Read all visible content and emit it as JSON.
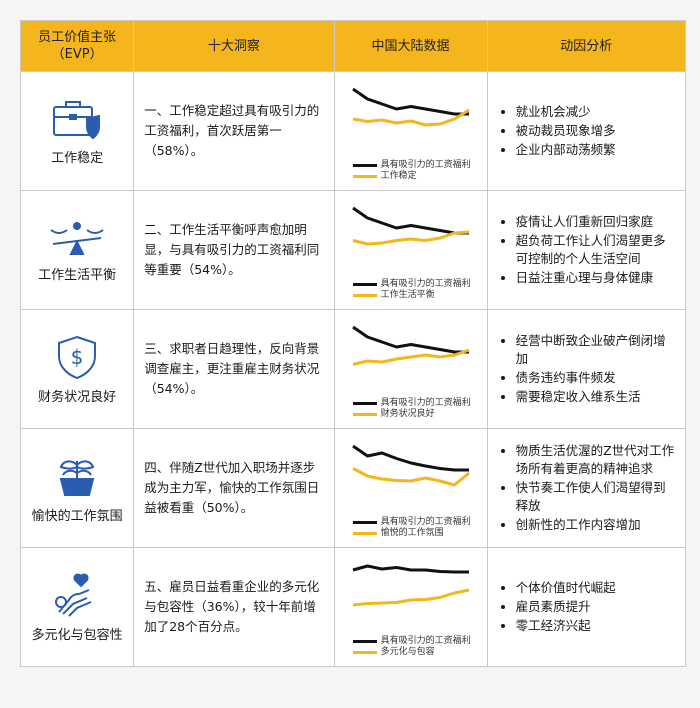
{
  "header": {
    "evp": "员工价值主张\n（EVP）",
    "insights": "十大洞察",
    "china_data": "中国大陆数据",
    "drivers": "动因分析"
  },
  "colors": {
    "accent": "#f5b51c",
    "icon_blue": "#2a5db0",
    "benchmark_line": "#111111"
  },
  "rows": [
    {
      "evp": "工作稳定",
      "icon": "briefcase-shield-icon",
      "insight": "一、工作稳定超过具有吸引力的工资福利，首次跃居第一（58%）。",
      "legend": [
        "具有吸引力的工资福利",
        "工作稳定"
      ],
      "series_black": [
        9,
        7,
        6,
        5,
        5.5,
        5,
        4.5,
        4,
        4
      ],
      "series_orange": [
        3,
        2.5,
        2.8,
        2.2,
        2.6,
        1.8,
        2,
        3,
        4.8
      ],
      "drivers": [
        "就业机会减少",
        "被动裁员现象增多",
        "企业内部动荡频繁"
      ]
    },
    {
      "evp": "工作生活平衡",
      "icon": "balance-scale-icon",
      "insight": "二、工作生活平衡呼声愈加明显，与具有吸引力的工资福利同等重要（54%）。",
      "legend": [
        "具有吸引力的工资福利",
        "工作生活平衡"
      ],
      "series_black": [
        9,
        7,
        6,
        5,
        5.5,
        5,
        4.5,
        4,
        4
      ],
      "series_orange": [
        2.5,
        1.8,
        2,
        2.5,
        2.8,
        2.5,
        3,
        4,
        4.2
      ],
      "drivers": [
        "疫情让人们重新回归家庭",
        "超负荷工作让人们渴望更多可控制的个人生活空间",
        "日益注重心理与身体健康"
      ]
    },
    {
      "evp": "财务状况良好",
      "icon": "dollar-shield-icon",
      "insight": "三、求职者日趋理性，反向背景调查雇主，更注重雇主财务状况（54%）。",
      "legend": [
        "具有吸引力的工资福利",
        "财务状况良好"
      ],
      "series_black": [
        9,
        7,
        6,
        5,
        5.5,
        5,
        4.5,
        4,
        4
      ],
      "series_orange": [
        1.5,
        2.2,
        2,
        2.6,
        3,
        3.4,
        3,
        3.4,
        4.4
      ],
      "drivers": [
        "经营中断致企业破产倒闭增加",
        "债务违约事件频发",
        "需要稳定收入维系生活"
      ]
    },
    {
      "evp": "愉快的工作氛围",
      "icon": "plant-pot-icon",
      "insight": "四、伴随Z世代加入职场并逐步成为主力军，愉快的工作氛围日益被看重（50%）。",
      "legend": [
        "具有吸引力的工资福利",
        "愉悦的工作氛围"
      ],
      "series_black": [
        9,
        7,
        7.6,
        6.5,
        5.6,
        5,
        4.5,
        4.2,
        4.2
      ],
      "series_orange": [
        4.5,
        3,
        2.4,
        2.1,
        2,
        2.6,
        2,
        1.2,
        3.6
      ],
      "drivers": [
        "物质生活优渥的Z世代对工作场所有着更高的精神追求",
        "快节奏工作使人们渴望得到释放",
        "创新性的工作内容增加"
      ]
    },
    {
      "evp": "多元化与包容性",
      "icon": "hands-heart-icon",
      "insight": "五、雇员日益看重企业的多元化与包容性（36%），较十年前增加了28个百分点。",
      "legend": [
        "具有吸引力的工资福利",
        "多元化与包容"
      ],
      "series_black": [
        8,
        8.8,
        8.2,
        8.5,
        8,
        8,
        7.7,
        7.6,
        7.6
      ],
      "series_orange": [
        1,
        1.3,
        1.4,
        1.5,
        2,
        2.1,
        2.5,
        3.4,
        4
      ],
      "drivers": [
        "个体价值时代崛起",
        "雇员素质提升",
        "零工经济兴起"
      ]
    }
  ]
}
